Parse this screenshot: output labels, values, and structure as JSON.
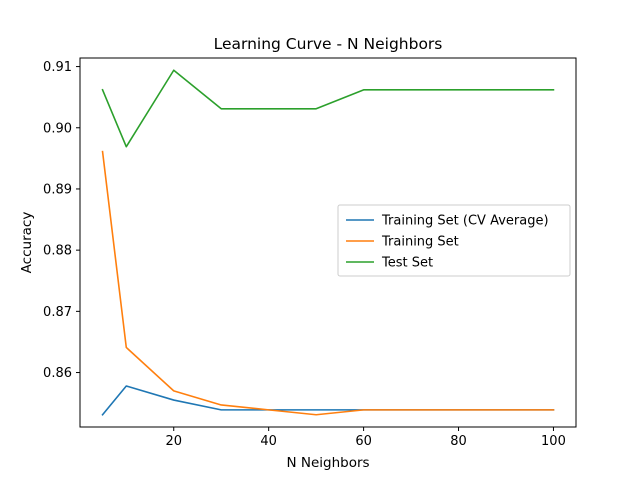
{
  "chart_data": {
    "type": "line",
    "title": "Learning Curve - N Neighbors",
    "xlabel": "N Neighbors",
    "ylabel": "Accuracy",
    "xlim": [
      0.25,
      104.75
    ],
    "ylim": [
      0.8511,
      0.9114
    ],
    "xticks": [
      20,
      40,
      60,
      80,
      100
    ],
    "yticks": [
      0.86,
      0.87,
      0.88,
      0.89,
      0.9,
      0.91
    ],
    "ytick_labels": [
      "0.86",
      "0.87",
      "0.88",
      "0.89",
      "0.90",
      "0.91"
    ],
    "grid": false,
    "legend_position": "center-right",
    "x": [
      5,
      10,
      20,
      30,
      40,
      50,
      60,
      70,
      80,
      90,
      100
    ],
    "series": [
      {
        "name": "Training Set (CV Average)",
        "color": "#1f77b4",
        "values": [
          0.8531,
          0.8578,
          0.8555,
          0.8539,
          0.8539,
          0.8539,
          0.8539,
          0.8539,
          0.8539,
          0.8539,
          0.8539
        ]
      },
      {
        "name": "Training Set",
        "color": "#ff7f0e",
        "values": [
          0.8961,
          0.8641,
          0.857,
          0.8547,
          0.8539,
          0.8531,
          0.8539,
          0.8539,
          0.8539,
          0.8539,
          0.8539
        ]
      },
      {
        "name": "Test Set",
        "color": "#2ca02c",
        "values": [
          0.9062,
          0.8969,
          0.9094,
          0.9031,
          0.9031,
          0.9031,
          0.9062,
          0.9062,
          0.9062,
          0.9062,
          0.9062
        ]
      }
    ]
  }
}
